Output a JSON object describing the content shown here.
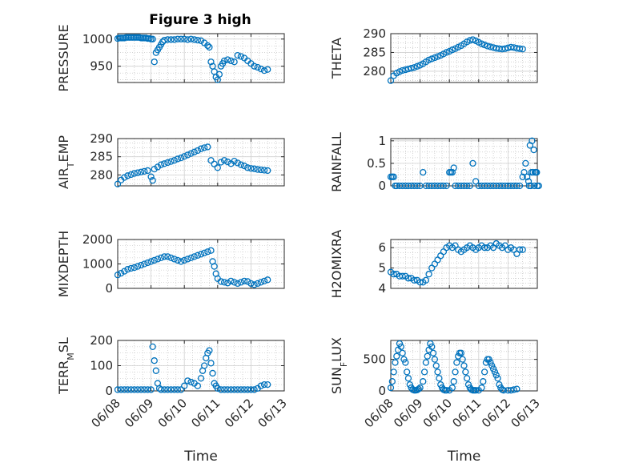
{
  "figure_title": "Figure 3 high",
  "colors": {
    "marker": "#0072BD",
    "axis": "#262626",
    "grid": "#d0d0d0",
    "minor_grid": "#b8b8b8"
  },
  "chart_data": [
    {
      "type": "scatter",
      "ylabel": "PRESSURE",
      "ylim": [
        920,
        1010
      ],
      "yticks": [
        950,
        1000
      ],
      "x_ticks": [],
      "xlabel": "",
      "x": [
        0.0,
        0.05,
        0.1,
        0.15,
        0.2,
        0.25,
        0.3,
        0.35,
        0.4,
        0.45,
        0.5,
        0.55,
        0.6,
        0.65,
        0.7,
        0.75,
        0.8,
        0.85,
        0.9,
        0.95,
        1.0,
        1.05,
        1.1,
        1.15,
        1.2,
        1.25,
        1.3,
        1.35,
        1.4,
        1.5,
        1.6,
        1.7,
        1.8,
        1.9,
        2.0,
        2.1,
        2.2,
        2.3,
        2.4,
        2.5,
        2.6,
        2.7,
        2.75,
        2.8,
        2.85,
        2.9,
        2.95,
        3.0,
        3.05,
        3.1,
        3.15,
        3.2,
        3.3,
        3.4,
        3.5,
        3.6,
        3.7,
        3.8,
        3.9,
        4.0,
        4.1,
        4.2,
        4.3,
        4.4,
        4.5
      ],
      "y": [
        1001,
        1002,
        1002,
        1002,
        1002,
        1003,
        1003,
        1003,
        1003,
        1003,
        1003,
        1003,
        1003,
        1003,
        1002,
        1002,
        1002,
        1002,
        1001,
        1001,
        1000,
        1000,
        958,
        975,
        980,
        985,
        990,
        995,
        998,
        999,
        999,
        999,
        1000,
        1000,
        1000,
        999,
        1000,
        999,
        998,
        997,
        993,
        988,
        985,
        958,
        950,
        940,
        930,
        925,
        935,
        950,
        955,
        960,
        962,
        960,
        958,
        970,
        968,
        965,
        960,
        955,
        950,
        948,
        945,
        942,
        944
      ]
    },
    {
      "type": "scatter",
      "ylabel": "THETA",
      "ylim": [
        277,
        290
      ],
      "yticks": [
        280,
        285,
        290
      ],
      "x_ticks": [],
      "xlabel": "",
      "x": [
        0.0,
        0.1,
        0.2,
        0.3,
        0.4,
        0.5,
        0.6,
        0.7,
        0.8,
        0.9,
        1.0,
        1.1,
        1.2,
        1.3,
        1.4,
        1.5,
        1.6,
        1.7,
        1.8,
        1.9,
        2.0,
        2.1,
        2.2,
        2.3,
        2.4,
        2.5,
        2.6,
        2.7,
        2.8,
        2.9,
        3.0,
        3.1,
        3.2,
        3.3,
        3.4,
        3.5,
        3.6,
        3.7,
        3.8,
        3.9,
        4.0,
        4.1,
        4.2,
        4.3,
        4.4,
        4.5
      ],
      "y": [
        277.5,
        278.8,
        279.5,
        279.9,
        280.2,
        280.4,
        280.6,
        280.8,
        281.0,
        281.3,
        281.6,
        282.0,
        282.5,
        283.0,
        283.3,
        283.6,
        283.9,
        284.2,
        284.6,
        285.0,
        285.3,
        285.7,
        286.0,
        286.4,
        286.8,
        287.3,
        287.8,
        288.2,
        288.4,
        288.1,
        287.7,
        287.3,
        287.0,
        286.7,
        286.5,
        286.3,
        286.1,
        286.0,
        285.9,
        286.0,
        286.2,
        286.4,
        286.3,
        286.1,
        286.0,
        285.9
      ]
    },
    {
      "type": "scatter",
      "ylabel": "AIR_TEMP",
      "ylim": [
        277,
        290
      ],
      "yticks": [
        280,
        285,
        290
      ],
      "x_ticks": [],
      "xlabel": "",
      "x": [
        0.0,
        0.1,
        0.2,
        0.3,
        0.4,
        0.5,
        0.6,
        0.7,
        0.8,
        0.9,
        1.0,
        1.05,
        1.1,
        1.2,
        1.3,
        1.4,
        1.5,
        1.6,
        1.7,
        1.8,
        1.9,
        2.0,
        2.1,
        2.2,
        2.3,
        2.4,
        2.5,
        2.6,
        2.7,
        2.8,
        2.9,
        3.0,
        3.1,
        3.2,
        3.3,
        3.4,
        3.5,
        3.6,
        3.7,
        3.8,
        3.9,
        4.0,
        4.1,
        4.2,
        4.3,
        4.4,
        4.5
      ],
      "y": [
        277.5,
        278.6,
        279.3,
        279.8,
        280.1,
        280.4,
        280.6,
        280.8,
        281.0,
        281.2,
        279.5,
        278.5,
        281.6,
        282.2,
        282.8,
        283.1,
        283.4,
        283.7,
        284.0,
        284.4,
        284.7,
        285.1,
        285.5,
        285.9,
        286.3,
        286.7,
        287.2,
        287.5,
        287.7,
        284.0,
        283.0,
        282.0,
        283.5,
        284.0,
        283.6,
        283.1,
        283.8,
        283.3,
        282.8,
        282.5,
        282.0,
        281.8,
        281.7,
        281.5,
        281.4,
        281.3,
        281.2
      ]
    },
    {
      "type": "scatter",
      "ylabel": "RAINFALL",
      "ylim": [
        0,
        1.05
      ],
      "yticks": [
        0,
        0.5,
        1
      ],
      "x_ticks": [],
      "xlabel": "",
      "x": [
        0.0,
        0.05,
        0.1,
        0.15,
        0.2,
        0.3,
        0.4,
        0.5,
        0.6,
        0.7,
        0.8,
        0.9,
        1.0,
        1.1,
        1.2,
        1.3,
        1.4,
        1.5,
        1.6,
        1.7,
        1.8,
        1.9,
        2.0,
        2.05,
        2.1,
        2.15,
        2.2,
        2.3,
        2.4,
        2.5,
        2.6,
        2.7,
        2.8,
        2.9,
        3.0,
        3.1,
        3.2,
        3.3,
        3.4,
        3.5,
        3.6,
        3.7,
        3.8,
        3.9,
        4.0,
        4.1,
        4.2,
        4.3,
        4.4,
        4.5,
        4.55,
        4.6,
        4.65,
        4.7,
        4.72,
        4.75,
        4.78,
        4.8,
        4.82,
        4.85,
        4.88,
        4.9,
        4.92,
        4.95,
        4.98,
        5.0,
        5.05
      ],
      "y": [
        0.2,
        0.2,
        0.2,
        0,
        0,
        0,
        0,
        0,
        0,
        0,
        0,
        0,
        0,
        0.3,
        0,
        0,
        0,
        0,
        0,
        0,
        0,
        0,
        0.3,
        0.3,
        0.3,
        0.4,
        0,
        0,
        0,
        0,
        0,
        0,
        0.5,
        0.1,
        0,
        0,
        0,
        0,
        0,
        0,
        0,
        0,
        0,
        0,
        0,
        0,
        0,
        0,
        0,
        0.2,
        0.3,
        0.5,
        0.2,
        0.1,
        0,
        0.9,
        0,
        0.3,
        1.0,
        0.3,
        0.8,
        0,
        0.3,
        0.3,
        0.3,
        0,
        0
      ]
    },
    {
      "type": "scatter",
      "ylabel": "MIXDEPTH",
      "ylim": [
        0,
        2000
      ],
      "yticks": [
        0,
        1000,
        2000
      ],
      "x_ticks": [],
      "xlabel": "",
      "x": [
        0.0,
        0.1,
        0.2,
        0.3,
        0.4,
        0.5,
        0.6,
        0.7,
        0.8,
        0.9,
        1.0,
        1.1,
        1.2,
        1.3,
        1.4,
        1.5,
        1.6,
        1.7,
        1.8,
        1.9,
        2.0,
        2.1,
        2.2,
        2.3,
        2.4,
        2.5,
        2.6,
        2.7,
        2.8,
        2.85,
        2.9,
        2.95,
        3.0,
        3.1,
        3.2,
        3.3,
        3.4,
        3.5,
        3.6,
        3.7,
        3.8,
        3.9,
        4.0,
        4.1,
        4.2,
        4.3,
        4.4,
        4.5
      ],
      "y": [
        550,
        620,
        700,
        780,
        820,
        850,
        900,
        950,
        1000,
        1050,
        1100,
        1150,
        1200,
        1250,
        1300,
        1300,
        1250,
        1200,
        1150,
        1100,
        1150,
        1200,
        1250,
        1300,
        1350,
        1400,
        1450,
        1500,
        1550,
        1100,
        900,
        600,
        400,
        280,
        250,
        220,
        300,
        250,
        200,
        250,
        300,
        280,
        200,
        150,
        200,
        250,
        300,
        350
      ]
    },
    {
      "type": "scatter",
      "ylabel": "H2OMIXRA",
      "ylim": [
        4,
        6.4
      ],
      "yticks": [
        4,
        5,
        6
      ],
      "x_ticks": [],
      "xlabel": "",
      "x": [
        0.0,
        0.1,
        0.2,
        0.3,
        0.4,
        0.5,
        0.6,
        0.7,
        0.8,
        0.9,
        1.0,
        1.1,
        1.2,
        1.3,
        1.4,
        1.5,
        1.6,
        1.7,
        1.8,
        1.9,
        2.0,
        2.1,
        2.2,
        2.3,
        2.4,
        2.5,
        2.6,
        2.7,
        2.8,
        2.9,
        3.0,
        3.1,
        3.2,
        3.3,
        3.4,
        3.5,
        3.6,
        3.7,
        3.8,
        3.9,
        4.0,
        4.1,
        4.2,
        4.3,
        4.4,
        4.5
      ],
      "y": [
        4.8,
        4.7,
        4.7,
        4.6,
        4.6,
        4.6,
        4.5,
        4.5,
        4.4,
        4.4,
        4.3,
        4.3,
        4.4,
        4.7,
        5.0,
        5.2,
        5.4,
        5.6,
        5.8,
        6.0,
        6.1,
        6.0,
        6.1,
        5.9,
        5.8,
        5.9,
        6.0,
        6.1,
        6.0,
        5.9,
        6.0,
        6.1,
        6.0,
        6.0,
        6.1,
        6.0,
        6.2,
        6.1,
        6.0,
        6.1,
        5.9,
        6.0,
        5.9,
        5.7,
        5.9,
        5.9
      ]
    },
    {
      "type": "scatter",
      "ylabel": "TERR_MSL",
      "ylim": [
        0,
        200
      ],
      "yticks": [
        0,
        100,
        200
      ],
      "x_ticks": [
        "06/08",
        "06/09",
        "06/10",
        "06/11",
        "06/12",
        "06/13"
      ],
      "xlabel": "Time",
      "x": [
        0.0,
        0.1,
        0.2,
        0.3,
        0.4,
        0.5,
        0.6,
        0.7,
        0.8,
        0.9,
        1.0,
        1.05,
        1.1,
        1.15,
        1.2,
        1.25,
        1.3,
        1.4,
        1.5,
        1.6,
        1.7,
        1.8,
        1.9,
        2.0,
        2.1,
        2.2,
        2.3,
        2.4,
        2.5,
        2.55,
        2.6,
        2.65,
        2.7,
        2.75,
        2.8,
        2.85,
        2.9,
        2.95,
        3.0,
        3.1,
        3.2,
        3.3,
        3.4,
        3.5,
        3.6,
        3.7,
        3.8,
        3.9,
        4.0,
        4.1,
        4.2,
        4.3,
        4.4,
        4.5
      ],
      "y": [
        5,
        5,
        5,
        5,
        5,
        5,
        5,
        5,
        5,
        5,
        5,
        175,
        120,
        80,
        30,
        10,
        5,
        5,
        5,
        5,
        5,
        5,
        5,
        20,
        40,
        35,
        30,
        20,
        50,
        80,
        100,
        130,
        150,
        160,
        110,
        70,
        30,
        20,
        10,
        5,
        5,
        5,
        5,
        5,
        5,
        5,
        5,
        5,
        5,
        5,
        10,
        20,
        25,
        25
      ]
    },
    {
      "type": "scatter",
      "ylabel": "SUN_FLUX",
      "ylim": [
        0,
        800
      ],
      "yticks": [
        0,
        500
      ],
      "x_ticks": [
        "06/08",
        "06/09",
        "06/10",
        "06/11",
        "06/12",
        "06/13"
      ],
      "xlabel": "Time",
      "x": [
        0.0,
        0.05,
        0.1,
        0.15,
        0.2,
        0.25,
        0.3,
        0.35,
        0.4,
        0.45,
        0.5,
        0.55,
        0.6,
        0.65,
        0.7,
        0.75,
        0.8,
        0.85,
        0.9,
        0.95,
        1.0,
        1.1,
        1.15,
        1.2,
        1.25,
        1.3,
        1.35,
        1.4,
        1.45,
        1.5,
        1.55,
        1.6,
        1.65,
        1.7,
        1.75,
        1.8,
        1.85,
        1.9,
        2.0,
        2.1,
        2.15,
        2.2,
        2.25,
        2.3,
        2.35,
        2.4,
        2.45,
        2.5,
        2.55,
        2.6,
        2.65,
        2.7,
        2.75,
        2.8,
        2.85,
        2.9,
        3.0,
        3.1,
        3.15,
        3.2,
        3.25,
        3.3,
        3.35,
        3.4,
        3.45,
        3.5,
        3.55,
        3.6,
        3.65,
        3.7,
        3.75,
        3.8,
        3.85,
        4.0,
        4.1,
        4.2,
        4.3
      ],
      "y": [
        50,
        150,
        300,
        450,
        550,
        650,
        750,
        700,
        600,
        500,
        450,
        300,
        200,
        100,
        50,
        20,
        10,
        10,
        15,
        30,
        50,
        150,
        300,
        450,
        550,
        650,
        750,
        700,
        600,
        500,
        400,
        300,
        200,
        100,
        50,
        20,
        10,
        10,
        10,
        50,
        150,
        300,
        450,
        550,
        600,
        600,
        500,
        400,
        300,
        200,
        100,
        50,
        20,
        10,
        10,
        10,
        10,
        50,
        150,
        300,
        450,
        500,
        500,
        450,
        400,
        350,
        300,
        250,
        200,
        100,
        50,
        20,
        10,
        10,
        10,
        20,
        30
      ]
    }
  ]
}
